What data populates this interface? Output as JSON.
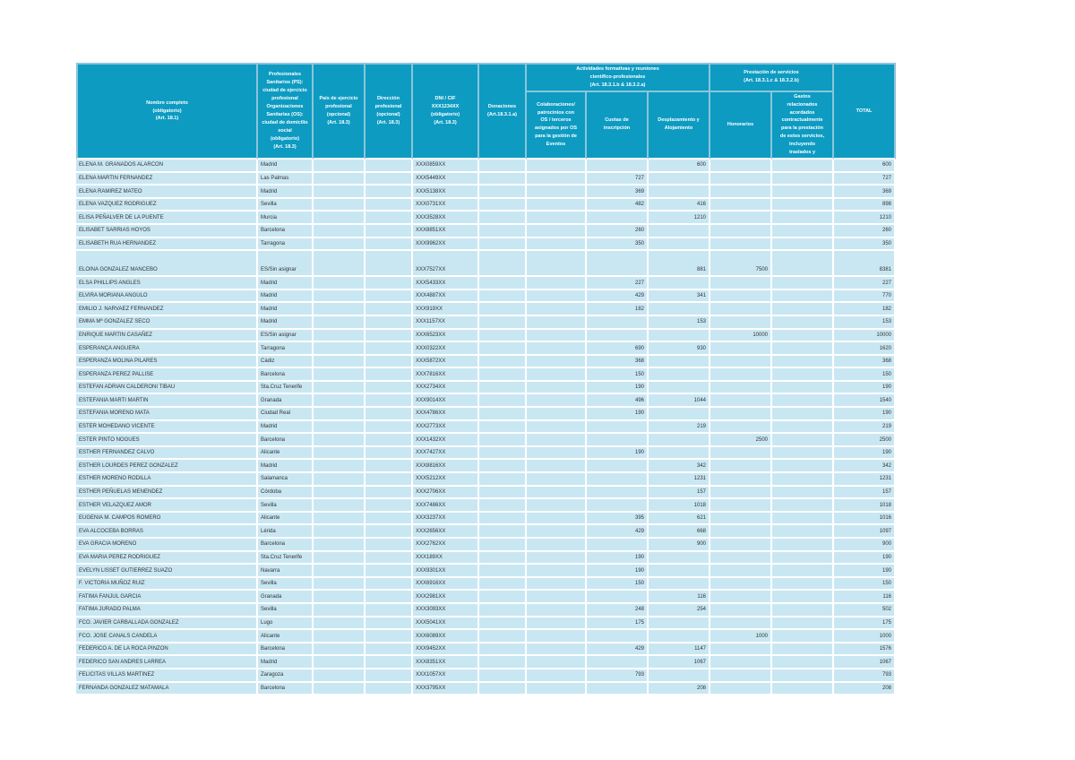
{
  "table": {
    "headers": {
      "nombre": "Nombre completo\n(obligatorio)\n(Art. 18.1)",
      "ciudad": "Profesionales\nSanitarios (PS):\nciudad de ejercicio\nprofesional\nOrganizaciones\nSanitarias (OS):\nciudad de domicilio\nsocial\n(obligatorio)\n(Art. 18.3)",
      "pais": "País de ejercicio\nprofesional\n(opcional)\n(Art. 18.3)",
      "direccion": "Dirección\nprofesional\n(opcional)\n(Art. 18.3)",
      "dni": "DNI / CIF\nXXX1234XX\n(obligatorio)\n(Art. 18.3)",
      "donaciones": "Donaciones\n(Art.18.3.1.a)",
      "grupo_actividades": "Actividades formativas y reuniones\ncientífico-profesionales\n(Art. 18.3.1.b & 18.3.2.a)",
      "colaboraciones": "Colaboraciones/\npatrocinios con\nOS / terceros\nasignados por OS\npara la gestión de\nEventos",
      "cuotas": "Cuotas de\ninscripción",
      "desplazamiento": "Desplazamiento y\nAlojamiento",
      "grupo_prestacion": "Prestación de servicios\n(Art. 18.3.1.c & 18.3.2.b)",
      "honorarios": "Honorarios",
      "gastos": "Gastos\nrelacionados\nacordados\ncontractualmente\npara la prestación\nde estos servicios,\nincluyendo\ntraslados y",
      "total": "TOTAL"
    },
    "columns": [
      "name",
      "city",
      "pais",
      "direccion",
      "dni",
      "donaciones",
      "colaboraciones",
      "cuotas",
      "desplazamiento",
      "honorarios",
      "gastos",
      "total"
    ],
    "numeric_columns": [
      "donaciones",
      "colaboraciones",
      "cuotas",
      "desplazamiento",
      "honorarios",
      "gastos",
      "total"
    ],
    "colors": {
      "header_bg": "#0d9bc2",
      "header_text": "#ffffff",
      "header_border": "#8cc5da",
      "row_bg": "#c9e7f3",
      "grid": "#ffffff",
      "row_text": "#333333"
    },
    "rows": [
      {
        "name": "ELENA M. GRANADOS ALARCON",
        "city": "Madrid",
        "dni": "XXX0859XX",
        "desplazamiento": 600,
        "total": 600
      },
      {
        "name": "ELENA MARTIN FERNANDEZ",
        "city": "Las Palmas",
        "dni": "XXX5449XX",
        "cuotas": 727,
        "total": 727
      },
      {
        "name": "ELENA RAMIREZ MATEO",
        "city": "Madrid",
        "dni": "XXX5138XX",
        "cuotas": 369,
        "total": 369
      },
      {
        "name": "ELENA VAZQUEZ RODRIGUEZ",
        "city": "Sevilla",
        "dni": "XXX0731XX",
        "cuotas": 482,
        "desplazamiento": 416,
        "total": 898
      },
      {
        "name": "ELISA PEÑALVER DE LA PUENTE",
        "city": "Murcia",
        "dni": "XXX3528XX",
        "desplazamiento": 1210,
        "total": 1210
      },
      {
        "name": "ELISABET SARRIAS HOYOS",
        "city": "Barcelona",
        "dni": "XXX8851XX",
        "cuotas": 260,
        "total": 260
      },
      {
        "name": "ELISABETH RUA HERNANDEZ",
        "city": "Tarragona",
        "dni": "XXX9962XX",
        "cuotas": 350,
        "total": 350
      },
      {
        "name": "ELOINA GONZALEZ MANCEBO",
        "city": "ES/Sin asignar",
        "dni": "XXX7527XX",
        "desplazamiento": 881,
        "honorarios": 7500,
        "total": 8381,
        "tall": true
      },
      {
        "name": "ELSA PHILLIPS ANGLES",
        "city": "Madrid",
        "dni": "XXX5433XX",
        "cuotas": 227,
        "total": 227
      },
      {
        "name": "ELVIRA MORIANA ANGULO",
        "city": "Madrid",
        "dni": "XXX4887XX",
        "cuotas": 429,
        "desplazamiento": 341,
        "total": 770
      },
      {
        "name": "EMILIO J. NARVAEZ FERNANDEZ",
        "city": "Madrid",
        "dni": "XXX919XX",
        "cuotas": 182,
        "total": 182
      },
      {
        "name": "EMMA Mª GONZALEZ SECO",
        "city": "Madrid",
        "dni": "XXX1157XX",
        "desplazamiento": 153,
        "total": 153
      },
      {
        "name": "ENRIQUE MARTIN CASAÑEZ",
        "city": "ES/Sin asignar",
        "dni": "XXX6523XX",
        "honorarios": 10000,
        "total": 10000
      },
      {
        "name": "ESPERANÇA ANGUERA",
        "city": "Tarragona",
        "dni": "XXX0322XX",
        "cuotas": 690,
        "desplazamiento": 930,
        "total": 1620
      },
      {
        "name": "ESPERANZA MOLINA PILARES",
        "city": "Cádiz",
        "dni": "XXX5872XX",
        "cuotas": 368,
        "total": 368
      },
      {
        "name": "ESPERANZA PEREZ PALLISE",
        "city": "Barcelona",
        "dni": "XXX7816XX",
        "cuotas": 150,
        "total": 150
      },
      {
        "name": "ESTEFAN ADRIAN CALDERONI TIBAU",
        "city": "Sta.Cruz Tenerife",
        "dni": "XXX2734XX",
        "cuotas": 190,
        "total": 190
      },
      {
        "name": "ESTEFANIA MARTI MARTIN",
        "city": "Granada",
        "dni": "XXX9014XX",
        "cuotas": 496,
        "desplazamiento": 1044,
        "total": 1540
      },
      {
        "name": "ESTEFANIA MORENO MATA",
        "city": "Ciudad Real",
        "dni": "XXX4786XX",
        "cuotas": 190,
        "total": 190
      },
      {
        "name": "ESTER MOHEDANO VICENTE",
        "city": "Madrid",
        "dni": "XXX2773XX",
        "desplazamiento": 219,
        "total": 219
      },
      {
        "name": "ESTER PINTO NOGUES",
        "city": "Barcelona",
        "dni": "XXX1432XX",
        "honorarios": 2500,
        "total": 2500
      },
      {
        "name": "ESTHER FERNANDEZ CALVO",
        "city": "Alicante",
        "dni": "XXX7427XX",
        "cuotas": 190,
        "total": 190
      },
      {
        "name": "ESTHER LOURDES PEREZ GONZALEZ",
        "city": "Madrid",
        "dni": "XXX8816XX",
        "desplazamiento": 342,
        "total": 342
      },
      {
        "name": "ESTHER MORENO RODILLA",
        "city": "Salamanca",
        "dni": "XXX5212XX",
        "desplazamiento": 1231,
        "total": 1231
      },
      {
        "name": "ESTHER PEÑUELAS MENENDEZ",
        "city": "Córdoba",
        "dni": "XXX2706XX",
        "desplazamiento": 157,
        "total": 157
      },
      {
        "name": "ESTHER VELAZQUEZ AMOR",
        "city": "Sevilla",
        "dni": "XXX7486XX",
        "desplazamiento": 1018,
        "total": 1018
      },
      {
        "name": "EUGENIA M. CAMPOS ROMERO",
        "city": "Alicante",
        "dni": "XXX3237XX",
        "cuotas": 395,
        "desplazamiento": 621,
        "total": 1016
      },
      {
        "name": "EVA ALCOCEBA BORRAS",
        "city": "Lérida",
        "dni": "XXX2656XX",
        "cuotas": 429,
        "desplazamiento": 668,
        "total": 1097
      },
      {
        "name": "EVA GRACIA MORENO",
        "city": "Barcelona",
        "dni": "XXX2762XX",
        "desplazamiento": 900,
        "total": 900
      },
      {
        "name": "EVA MARIA PEREZ RODRIGUEZ",
        "city": "Sta.Cruz Tenerife",
        "dni": "XXX189XX",
        "cuotas": 190,
        "total": 190
      },
      {
        "name": "EVELYN LISSET GUTIERREZ SUAZO",
        "city": "Navarra",
        "dni": "XXX9301XX",
        "cuotas": 190,
        "total": 190
      },
      {
        "name": "F. VICTORIA MUÑOZ RUIZ",
        "city": "Sevilla",
        "dni": "XXX6916XX",
        "cuotas": 150,
        "total": 150
      },
      {
        "name": "FATIMA FANJUL GARCIA",
        "city": "Granada",
        "dni": "XXX2981XX",
        "desplazamiento": 116,
        "total": 116
      },
      {
        "name": "FATIMA JURADO PALMA",
        "city": "Sevilla",
        "dni": "XXX3093XX",
        "cuotas": 248,
        "desplazamiento": 254,
        "total": 502
      },
      {
        "name": "FCO. JAVIER CARBALLADA GONZALEZ",
        "city": "Lugo",
        "dni": "XXX5041XX",
        "cuotas": 175,
        "total": 175
      },
      {
        "name": "FCO. JOSE CANALS CANDELA",
        "city": "Alicante",
        "dni": "XXX6089XX",
        "honorarios": 1000,
        "total": 1000
      },
      {
        "name": "FEDERICO A. DE LA ROCA PINZON",
        "city": "Barcelona",
        "dni": "XXX9452XX",
        "cuotas": 429,
        "desplazamiento": 1147,
        "total": 1576
      },
      {
        "name": "FEDERICO SAN ANDRES LARREA",
        "city": "Madrid",
        "dni": "XXX8351XX",
        "desplazamiento": 1067,
        "total": 1067
      },
      {
        "name": "FELICITAS VILLAS MARTINEZ",
        "city": "Zaragoza",
        "dni": "XXX1057XX",
        "cuotas": 793,
        "total": 793
      },
      {
        "name": "FERNANDA GONZALEZ MATAMALA",
        "city": "Barcelona",
        "dni": "XXX3795XX",
        "desplazamiento": 208,
        "total": 208
      }
    ]
  }
}
